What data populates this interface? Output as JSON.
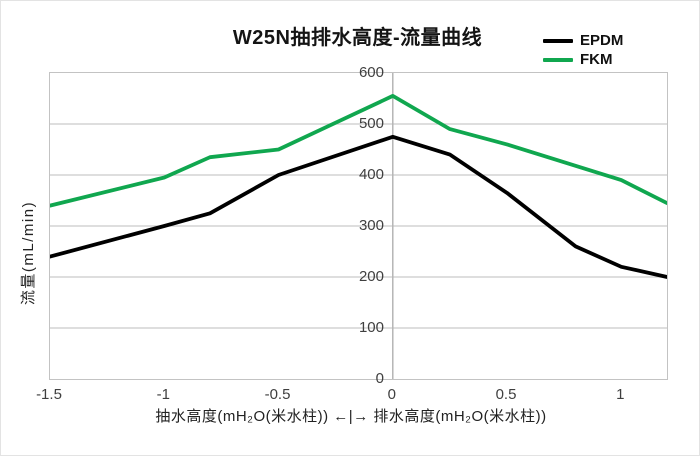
{
  "chart_data": {
    "type": "line",
    "title": "W25N抽排水高度-流量曲线",
    "ylabel": "流量(mL/min)",
    "xlabel": "抽水高度(mH₂O(米水柱)) ←|→ 排水高度(mH₂O(米水柱))",
    "xlim": [
      -1.5,
      1.2
    ],
    "ylim": [
      0,
      600
    ],
    "x_ticks": [
      "-1.5",
      "-1",
      "-0.5",
      "0",
      "0.5",
      "1"
    ],
    "y_ticks": [
      600,
      500,
      400,
      300,
      200,
      100,
      0
    ],
    "grid": "horizontal gridlines every 100; single vertical axis line at x=0",
    "legend_position": "top-right",
    "colors": {
      "gridline": "#c9c9c9",
      "center_axis": "#b5b5b5",
      "tick_text": "#3f3f3f"
    },
    "series": [
      {
        "name": "EPDM",
        "color": "#000000",
        "points": [
          [
            -1.5,
            240
          ],
          [
            -1,
            300
          ],
          [
            -0.8,
            325
          ],
          [
            -0.5,
            400
          ],
          [
            0,
            475
          ],
          [
            0.25,
            440
          ],
          [
            0.5,
            365
          ],
          [
            0.8,
            260
          ],
          [
            1,
            220
          ],
          [
            1.2,
            200
          ]
        ]
      },
      {
        "name": "FKM",
        "color": "#10A74F",
        "points": [
          [
            -1.5,
            340
          ],
          [
            -1,
            395
          ],
          [
            -0.8,
            435
          ],
          [
            -0.5,
            450
          ],
          [
            0,
            555
          ],
          [
            0.25,
            490
          ],
          [
            0.5,
            460
          ],
          [
            1,
            390
          ],
          [
            1.2,
            345
          ]
        ]
      }
    ]
  }
}
